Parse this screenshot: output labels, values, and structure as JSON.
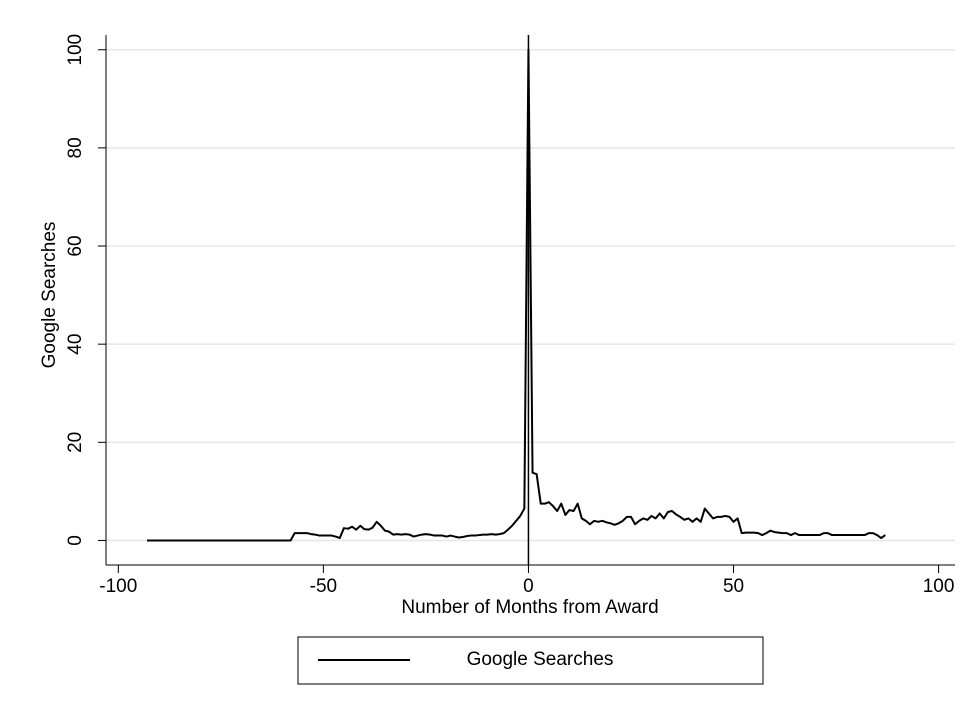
{
  "chart_data": {
    "type": "line",
    "xlabel": "Number of Months from Award",
    "ylabel": "Google Searches",
    "x": [
      -93,
      -92,
      -91,
      -90,
      -89,
      -88,
      -87,
      -86,
      -85,
      -84,
      -83,
      -82,
      -81,
      -80,
      -79,
      -78,
      -77,
      -76,
      -75,
      -74,
      -73,
      -72,
      -71,
      -70,
      -69,
      -68,
      -67,
      -66,
      -65,
      -64,
      -63,
      -62,
      -61,
      -60,
      -59,
      -58,
      -57,
      -56,
      -55,
      -54,
      -53,
      -52,
      -51,
      -50,
      -49,
      -48,
      -47,
      -46,
      -45,
      -44,
      -43,
      -42,
      -41,
      -40,
      -39,
      -38,
      -37,
      -36,
      -35,
      -34,
      -33,
      -32,
      -31,
      -30,
      -29,
      -28,
      -27,
      -26,
      -25,
      -24,
      -23,
      -22,
      -21,
      -20,
      -19,
      -18,
      -17,
      -16,
      -15,
      -14,
      -13,
      -12,
      -11,
      -10,
      -9,
      -8,
      -7,
      -6,
      -5,
      -4,
      -3,
      -2,
      -1,
      0,
      1,
      2,
      3,
      4,
      5,
      6,
      7,
      8,
      9,
      10,
      11,
      12,
      13,
      14,
      15,
      16,
      17,
      18,
      19,
      20,
      21,
      22,
      23,
      24,
      25,
      26,
      27,
      28,
      29,
      30,
      31,
      32,
      33,
      34,
      35,
      36,
      37,
      38,
      39,
      40,
      41,
      42,
      43,
      44,
      45,
      46,
      47,
      48,
      49,
      50,
      51,
      52,
      53,
      54,
      55,
      56,
      57,
      58,
      59,
      60,
      61,
      62,
      63,
      64,
      65,
      66,
      67,
      68,
      69,
      70,
      71,
      72,
      73,
      74,
      75,
      76,
      77,
      78,
      79,
      80,
      81,
      82,
      83,
      84,
      85,
      86,
      87
    ],
    "series": [
      {
        "name": "Google Searches",
        "color": "#000000",
        "values": [
          0,
          0,
          0,
          0,
          0,
          0,
          0,
          0,
          0,
          0,
          0,
          0,
          0,
          0,
          0,
          0,
          0,
          0,
          0,
          0,
          0,
          0,
          0,
          0,
          0,
          0,
          0,
          0,
          0,
          0,
          0,
          0,
          0,
          0,
          0,
          0,
          1.5,
          1.5,
          1.5,
          1.5,
          1.3,
          1.2,
          1,
          1,
          1,
          1,
          0.8,
          0.5,
          2.5,
          2.4,
          2.8,
          2.2,
          3,
          2.3,
          2.2,
          2.6,
          3.8,
          3,
          2,
          1.8,
          1.2,
          1.3,
          1.2,
          1.3,
          1.2,
          0.8,
          1,
          1.2,
          1.3,
          1.2,
          1,
          1,
          1,
          0.8,
          1,
          0.8,
          0.6,
          0.7,
          0.9,
          1,
          1,
          1.1,
          1.2,
          1.2,
          1.3,
          1.2,
          1.3,
          1.5,
          2.2,
          3,
          4,
          5,
          6.5,
          100,
          13.8,
          13.5,
          7.5,
          7.5,
          7.8,
          7,
          6,
          7.5,
          5.2,
          6.2,
          6,
          7.5,
          4.5,
          4,
          3.3,
          4,
          3.8,
          4,
          3.7,
          3.5,
          3.2,
          3.5,
          4,
          4.8,
          4.8,
          3.3,
          4,
          4.5,
          4.2,
          5,
          4.5,
          5.5,
          4.5,
          5.8,
          6,
          5.3,
          4.8,
          4.2,
          4.5,
          3.8,
          4.5,
          3.8,
          6.5,
          5.5,
          4.5,
          4.8,
          4.8,
          5,
          4.8,
          3.8,
          4.5,
          1.5,
          1.6,
          1.6,
          1.6,
          1.5,
          1.1,
          1.5,
          2,
          1.7,
          1.6,
          1.5,
          1.5,
          1.1,
          1.5,
          1.1,
          1.1,
          1.1,
          1.1,
          1.1,
          1.1,
          1.5,
          1.5,
          1.1,
          1.1,
          1.1,
          1.1,
          1.1,
          1.1,
          1.1,
          1.1,
          1.1,
          1.5,
          1.5,
          1.1,
          0.5,
          1.1
        ]
      }
    ],
    "xlim": [
      -103,
      104
    ],
    "xticks": [
      -100,
      -50,
      0,
      50,
      100
    ],
    "ylim": [
      -5,
      103
    ],
    "yticks": [
      0,
      20,
      40,
      60,
      80,
      100
    ],
    "xline": 0,
    "grid": true
  }
}
